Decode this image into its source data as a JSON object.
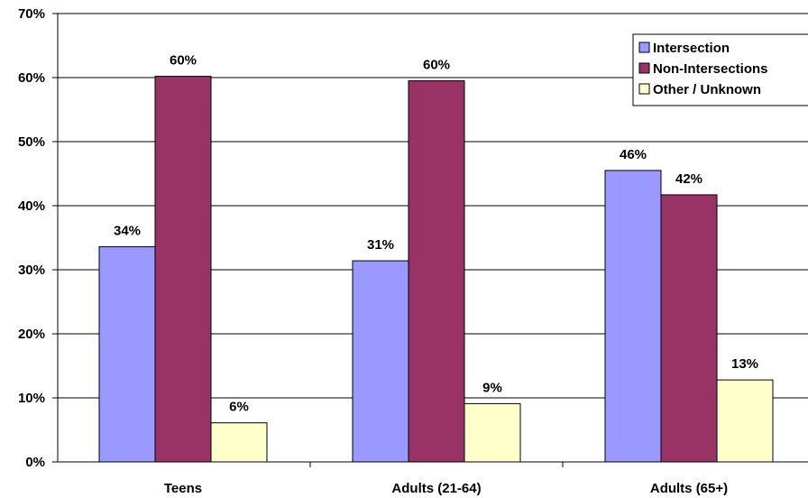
{
  "chart_data": {
    "type": "bar",
    "categories": [
      "Teens",
      "Adults (21-64)",
      "Adults (65+)"
    ],
    "series": [
      {
        "name": "Intersection",
        "color": "#9999ff",
        "values": [
          33.6,
          31.4,
          45.5
        ],
        "labels": [
          "34%",
          "31%",
          "46%"
        ]
      },
      {
        "name": "Non-Intersections",
        "color": "#993366",
        "values": [
          60.2,
          59.5,
          41.7
        ],
        "labels": [
          "60%",
          "60%",
          "42%"
        ]
      },
      {
        "name": "Other / Unknown",
        "color": "#ffffcc",
        "values": [
          6.1,
          9.1,
          12.8
        ],
        "labels": [
          "6%",
          "9%",
          "13%"
        ]
      }
    ],
    "ylim": [
      0,
      70
    ],
    "yticks": [
      0,
      10,
      20,
      30,
      40,
      50,
      60,
      70
    ],
    "ytick_labels": [
      "0%",
      "10%",
      "20%",
      "30%",
      "40%",
      "50%",
      "60%",
      "70%"
    ],
    "grid": true,
    "legend_position": "top-right"
  }
}
